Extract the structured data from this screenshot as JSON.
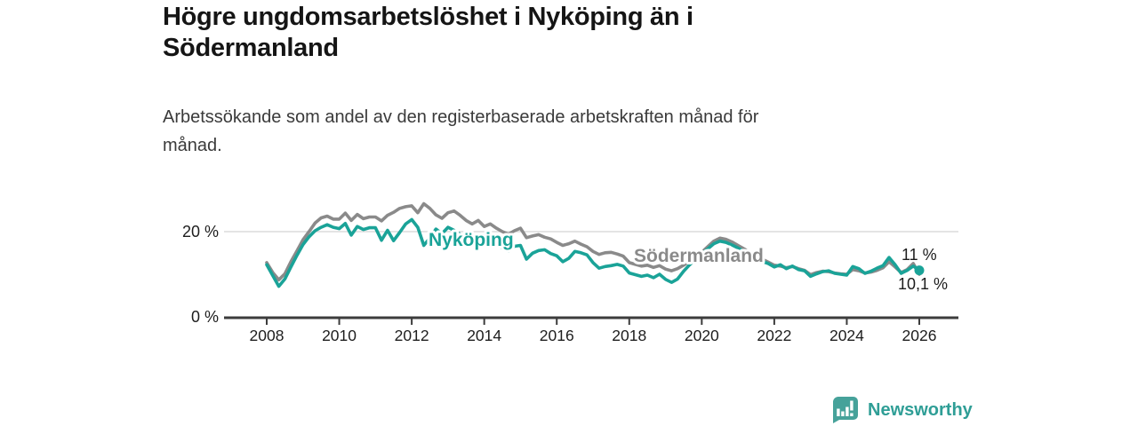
{
  "header": {
    "title_line1": "Högre ungdomsarbetslöshet i Nyköping än i",
    "title_line2": "Södermanland",
    "subtitle_line1": "Arbetssökande som andel av den registerbaserade arbetskraften månad för",
    "subtitle_line2": "månad."
  },
  "footer": {
    "brand": "Newsworthy",
    "brand_color": "#2f9e96",
    "logo_color": "#46a29a",
    "logo_icon": "bar-chart-speech-bubble-icon"
  },
  "chart_data": {
    "type": "line",
    "title": "Högre ungdomsarbetslöshet i Nyköping än i Södermanland",
    "subtitle": "Arbetssökande som andel av den registerbaserade arbetskraften månad för månad.",
    "unit": "%",
    "x_start_year": 2008,
    "x_step_months": 2,
    "x_ticks": [
      2008,
      2010,
      2012,
      2014,
      2016,
      2018,
      2020,
      2022,
      2024,
      2026
    ],
    "y_ticks": [
      {
        "value": 0,
        "label": "0 %"
      },
      {
        "value": 20,
        "label": "20 %"
      }
    ],
    "ylim": [
      0,
      28
    ],
    "xlim": [
      2007.8,
      2027.1
    ],
    "grid": "single-horizontal-at-20",
    "legend_position": "inline-labels-on-lines",
    "series": [
      {
        "name": "Nyköping",
        "color": "#1aa398",
        "end_label": "11 %",
        "end_value": 11.0,
        "end_dot": true,
        "values": [
          12.3,
          9.8,
          7.3,
          9.0,
          11.8,
          14.5,
          17.0,
          18.8,
          20.2,
          21.0,
          21.6,
          21.0,
          20.7,
          21.9,
          19.2,
          21.2,
          20.5,
          20.9,
          20.9,
          18.0,
          20.3,
          17.9,
          19.8,
          21.8,
          22.8,
          21.0,
          16.8,
          18.5,
          20.6,
          19.5,
          21.0,
          20.3,
          19.4,
          18.3,
          17.2,
          18.4,
          17.8,
          18.3,
          17.2,
          16.2,
          15.5,
          16.6,
          16.8,
          13.6,
          15.0,
          15.6,
          15.8,
          14.9,
          14.4,
          13.0,
          13.8,
          15.4,
          15.1,
          14.6,
          12.8,
          11.5,
          11.9,
          12.1,
          12.4,
          12.0,
          10.4,
          10.0,
          9.6,
          9.9,
          9.3,
          10.1,
          8.9,
          8.2,
          9.0,
          10.8,
          12.3,
          13.5,
          14.8,
          16.0,
          17.2,
          17.8,
          17.5,
          16.9,
          16.2,
          15.4,
          14.6,
          13.8,
          13.1,
          12.6,
          11.8,
          12.3,
          11.4,
          12.0,
          11.2,
          10.9,
          9.6,
          10.2,
          10.7,
          10.9,
          10.3,
          10.1,
          9.9,
          11.9,
          11.4,
          10.3,
          10.8,
          11.5,
          12.1,
          14.0,
          12.3,
          10.3,
          11.0,
          12.0,
          11.0
        ]
      },
      {
        "name": "Södermanland",
        "color": "#8a8a8a",
        "end_label": "10,1 %",
        "end_value": 10.1,
        "end_dot": false,
        "values": [
          12.8,
          10.5,
          8.8,
          10.2,
          13.0,
          15.5,
          18.1,
          20.0,
          22.0,
          23.2,
          23.6,
          22.9,
          22.9,
          24.3,
          22.6,
          24.0,
          23.0,
          23.4,
          23.4,
          22.5,
          23.8,
          24.5,
          25.4,
          25.8,
          26.0,
          24.4,
          26.5,
          25.4,
          23.9,
          23.1,
          24.4,
          24.8,
          23.8,
          22.6,
          21.8,
          22.6,
          21.2,
          21.8,
          20.8,
          20.0,
          19.4,
          20.2,
          20.8,
          18.6,
          19.0,
          19.3,
          18.7,
          18.3,
          17.5,
          16.8,
          17.2,
          17.8,
          17.1,
          16.5,
          15.4,
          14.7,
          15.1,
          15.2,
          14.8,
          14.3,
          12.8,
          12.4,
          12.0,
          12.2,
          11.7,
          12.1,
          11.3,
          10.9,
          11.4,
          12.2,
          13.1,
          14.0,
          15.2,
          16.5,
          17.8,
          18.5,
          18.2,
          17.6,
          16.8,
          16.0,
          15.2,
          14.4,
          13.6,
          12.9,
          12.2,
          12.0,
          11.6,
          11.9,
          11.4,
          11.0,
          10.0,
          10.5,
          10.8,
          10.7,
          10.4,
          10.2,
          10.1,
          11.2,
          10.9,
          10.4,
          10.6,
          11.0,
          11.6,
          13.0,
          11.8,
          10.5,
          11.2,
          12.6,
          10.1
        ]
      }
    ]
  }
}
